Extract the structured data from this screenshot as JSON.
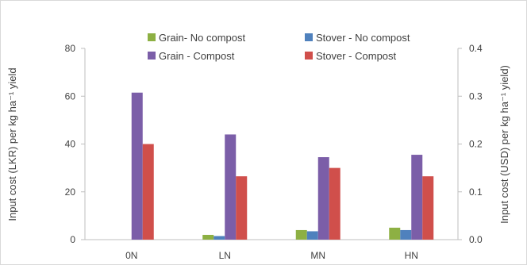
{
  "chart_data": {
    "type": "bar",
    "categories": [
      "0N",
      "LN",
      "MN",
      "HN"
    ],
    "series": [
      {
        "name": "Grain-  No compost",
        "values": [
          0,
          2,
          4,
          5
        ],
        "color": "#8db043"
      },
      {
        "name": "Stover - No compost",
        "values": [
          0,
          1.5,
          3.5,
          4
        ],
        "color": "#4f81bd"
      },
      {
        "name": "Grain - Compost",
        "values": [
          61.5,
          44,
          34.5,
          35.5
        ],
        "color": "#7b5ea8"
      },
      {
        "name": "Stover - Compost",
        "values": [
          40,
          26.5,
          30,
          26.5
        ],
        "color": "#d04f4b"
      }
    ],
    "ylabel": "Input cost (LKR) per kg ha⁻¹ yield",
    "y2label": "Input cost (USD) per kg ha⁻¹ yield)",
    "ylim": [
      0,
      80
    ],
    "y2lim": [
      0,
      0.4
    ],
    "yticks": [
      "0",
      "20",
      "40",
      "60",
      "80"
    ],
    "y2ticks": [
      "0.0",
      "0.1",
      "0.2",
      "0.3",
      "0.4"
    ],
    "grid": false,
    "legend_position": "top-right"
  }
}
